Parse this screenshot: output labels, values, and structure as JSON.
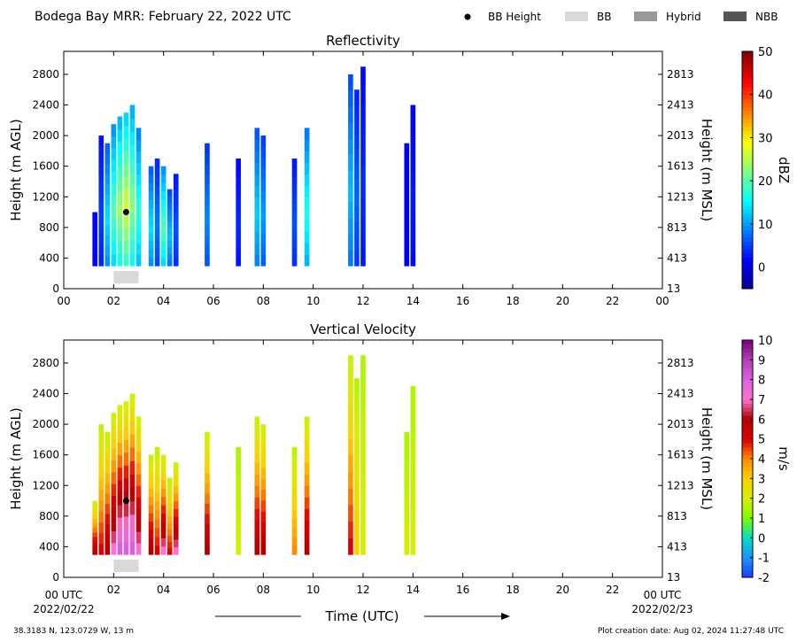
{
  "header": {
    "title": "Bodega Bay MRR:  February 22, 2022 UTC",
    "legend": [
      {
        "label": "BB Height",
        "kind": "dot",
        "color": "#000000"
      },
      {
        "label": "BB",
        "kind": "box",
        "color": "#d9d9d9"
      },
      {
        "label": "Hybrid",
        "kind": "box",
        "color": "#999999"
      },
      {
        "label": "NBB",
        "kind": "box",
        "color": "#555555"
      }
    ]
  },
  "footer": {
    "location": "38.3183 N, 123.0729 W, 13 m",
    "creation": "Plot creation date: Aug 02, 2024 11:27:48 UTC",
    "time_label": "Time (UTC)",
    "start_label": "00 UTC",
    "start_date": "2022/02/22",
    "end_label": "00 UTC",
    "end_date": "2022/02/23"
  },
  "chart_data": [
    {
      "type": "heatmap",
      "title": "Reflectivity",
      "ylabel": "Height (m AGL)",
      "ylabel_right": "Height (m MSL)",
      "colorbar_label": "dBZ",
      "colorbar_ticks": [
        "50",
        "40",
        "30",
        "20",
        "10",
        "0"
      ],
      "colorbar_range": [
        -5,
        50
      ],
      "xlim": [
        0,
        24
      ],
      "ylim": [
        0,
        3100
      ],
      "x_ticks": [
        "00",
        "02",
        "04",
        "06",
        "08",
        "10",
        "12",
        "14",
        "16",
        "18",
        "20",
        "22",
        "00"
      ],
      "y_ticks": [
        "0",
        "400",
        "800",
        "1200",
        "1600",
        "2000",
        "2400",
        "2800"
      ],
      "y_ticks_right": [
        "13",
        "413",
        "813",
        "1213",
        "1613",
        "2013",
        "2413",
        "2813"
      ],
      "bb_height": {
        "time_h": 2.5,
        "height_m": 1000
      },
      "bb_bar": {
        "start_h": 2.0,
        "end_h": 3.0,
        "class": "BB"
      },
      "columns": [
        {
          "t": 1.25,
          "top": 1000,
          "value": 2
        },
        {
          "t": 1.5,
          "top": 2000,
          "value": 5
        },
        {
          "t": 1.75,
          "top": 1900,
          "value": 14
        },
        {
          "t": 2.0,
          "top": 2150,
          "value": 20
        },
        {
          "t": 2.25,
          "top": 2250,
          "value": 24
        },
        {
          "t": 2.5,
          "top": 2300,
          "value": 27
        },
        {
          "t": 2.75,
          "top": 2400,
          "value": 23
        },
        {
          "t": 3.0,
          "top": 2100,
          "value": 18
        },
        {
          "t": 3.5,
          "top": 1600,
          "value": 14
        },
        {
          "t": 3.75,
          "top": 1700,
          "value": 8
        },
        {
          "t": 4.0,
          "top": 1600,
          "value": 20
        },
        {
          "t": 4.25,
          "top": 1300,
          "value": 12
        },
        {
          "t": 4.5,
          "top": 1500,
          "value": 6
        },
        {
          "t": 5.75,
          "top": 1900,
          "value": 9
        },
        {
          "t": 7.0,
          "top": 1700,
          "value": 4
        },
        {
          "t": 7.75,
          "top": 2100,
          "value": 13
        },
        {
          "t": 8.0,
          "top": 2000,
          "value": 10
        },
        {
          "t": 9.25,
          "top": 1700,
          "value": 6
        },
        {
          "t": 9.75,
          "top": 2100,
          "value": 17
        },
        {
          "t": 11.5,
          "top": 2800,
          "value": 12
        },
        {
          "t": 11.75,
          "top": 2600,
          "value": 7
        },
        {
          "t": 12.0,
          "top": 2900,
          "value": 4
        },
        {
          "t": 13.75,
          "top": 1900,
          "value": 1
        },
        {
          "t": 14.0,
          "top": 2400,
          "value": 3
        }
      ]
    },
    {
      "type": "heatmap",
      "title": "Vertical Velocity",
      "ylabel": "Height (m AGL)",
      "ylabel_right": "Height (m MSL)",
      "colorbar_label": "m/s",
      "colorbar_ticks": [
        "10",
        "9",
        "8",
        "7",
        "6",
        "5",
        "4",
        "3",
        "2",
        "1",
        "0",
        "-1",
        "-2"
      ],
      "colorbar_range": [
        -2,
        10
      ],
      "xlim": [
        0,
        24
      ],
      "ylim": [
        0,
        3100
      ],
      "x_ticks": [
        "00",
        "02",
        "04",
        "06",
        "08",
        "10",
        "12",
        "14",
        "16",
        "18",
        "20",
        "22",
        "00"
      ],
      "y_ticks": [
        "0",
        "400",
        "800",
        "1200",
        "1600",
        "2000",
        "2400",
        "2800"
      ],
      "y_ticks_right": [
        "13",
        "413",
        "813",
        "1213",
        "1613",
        "2013",
        "2413",
        "2813"
      ],
      "bb_height": {
        "time_h": 2.5,
        "height_m": 1000
      },
      "bb_bar": {
        "start_h": 2.0,
        "end_h": 3.0,
        "class": "BB"
      },
      "columns": [
        {
          "t": 1.25,
          "top": 1000,
          "value": 6
        },
        {
          "t": 1.5,
          "top": 2000,
          "value": 5
        },
        {
          "t": 1.75,
          "top": 1900,
          "value": 6
        },
        {
          "t": 2.0,
          "top": 2150,
          "value": 7
        },
        {
          "t": 2.25,
          "top": 2250,
          "value": 8
        },
        {
          "t": 2.5,
          "top": 2300,
          "value": 8
        },
        {
          "t": 2.75,
          "top": 2400,
          "value": 8
        },
        {
          "t": 3.0,
          "top": 2100,
          "value": 7
        },
        {
          "t": 3.5,
          "top": 1600,
          "value": 6
        },
        {
          "t": 3.75,
          "top": 1700,
          "value": 5
        },
        {
          "t": 4.0,
          "top": 1600,
          "value": 7
        },
        {
          "t": 4.25,
          "top": 1300,
          "value": 5
        },
        {
          "t": 4.5,
          "top": 1500,
          "value": 7
        },
        {
          "t": 5.75,
          "top": 1900,
          "value": 6
        },
        {
          "t": 7.0,
          "top": 1700,
          "value": 2
        },
        {
          "t": 7.75,
          "top": 2100,
          "value": 6
        },
        {
          "t": 8.0,
          "top": 2000,
          "value": 6
        },
        {
          "t": 9.25,
          "top": 1700,
          "value": 4
        },
        {
          "t": 9.75,
          "top": 2100,
          "value": 6
        },
        {
          "t": 11.5,
          "top": 2900,
          "value": 5
        },
        {
          "t": 11.75,
          "top": 2600,
          "value": 3
        },
        {
          "t": 12.0,
          "top": 2900,
          "value": 2
        },
        {
          "t": 13.75,
          "top": 1900,
          "value": 2
        },
        {
          "t": 14.0,
          "top": 2500,
          "value": 2
        }
      ]
    }
  ]
}
